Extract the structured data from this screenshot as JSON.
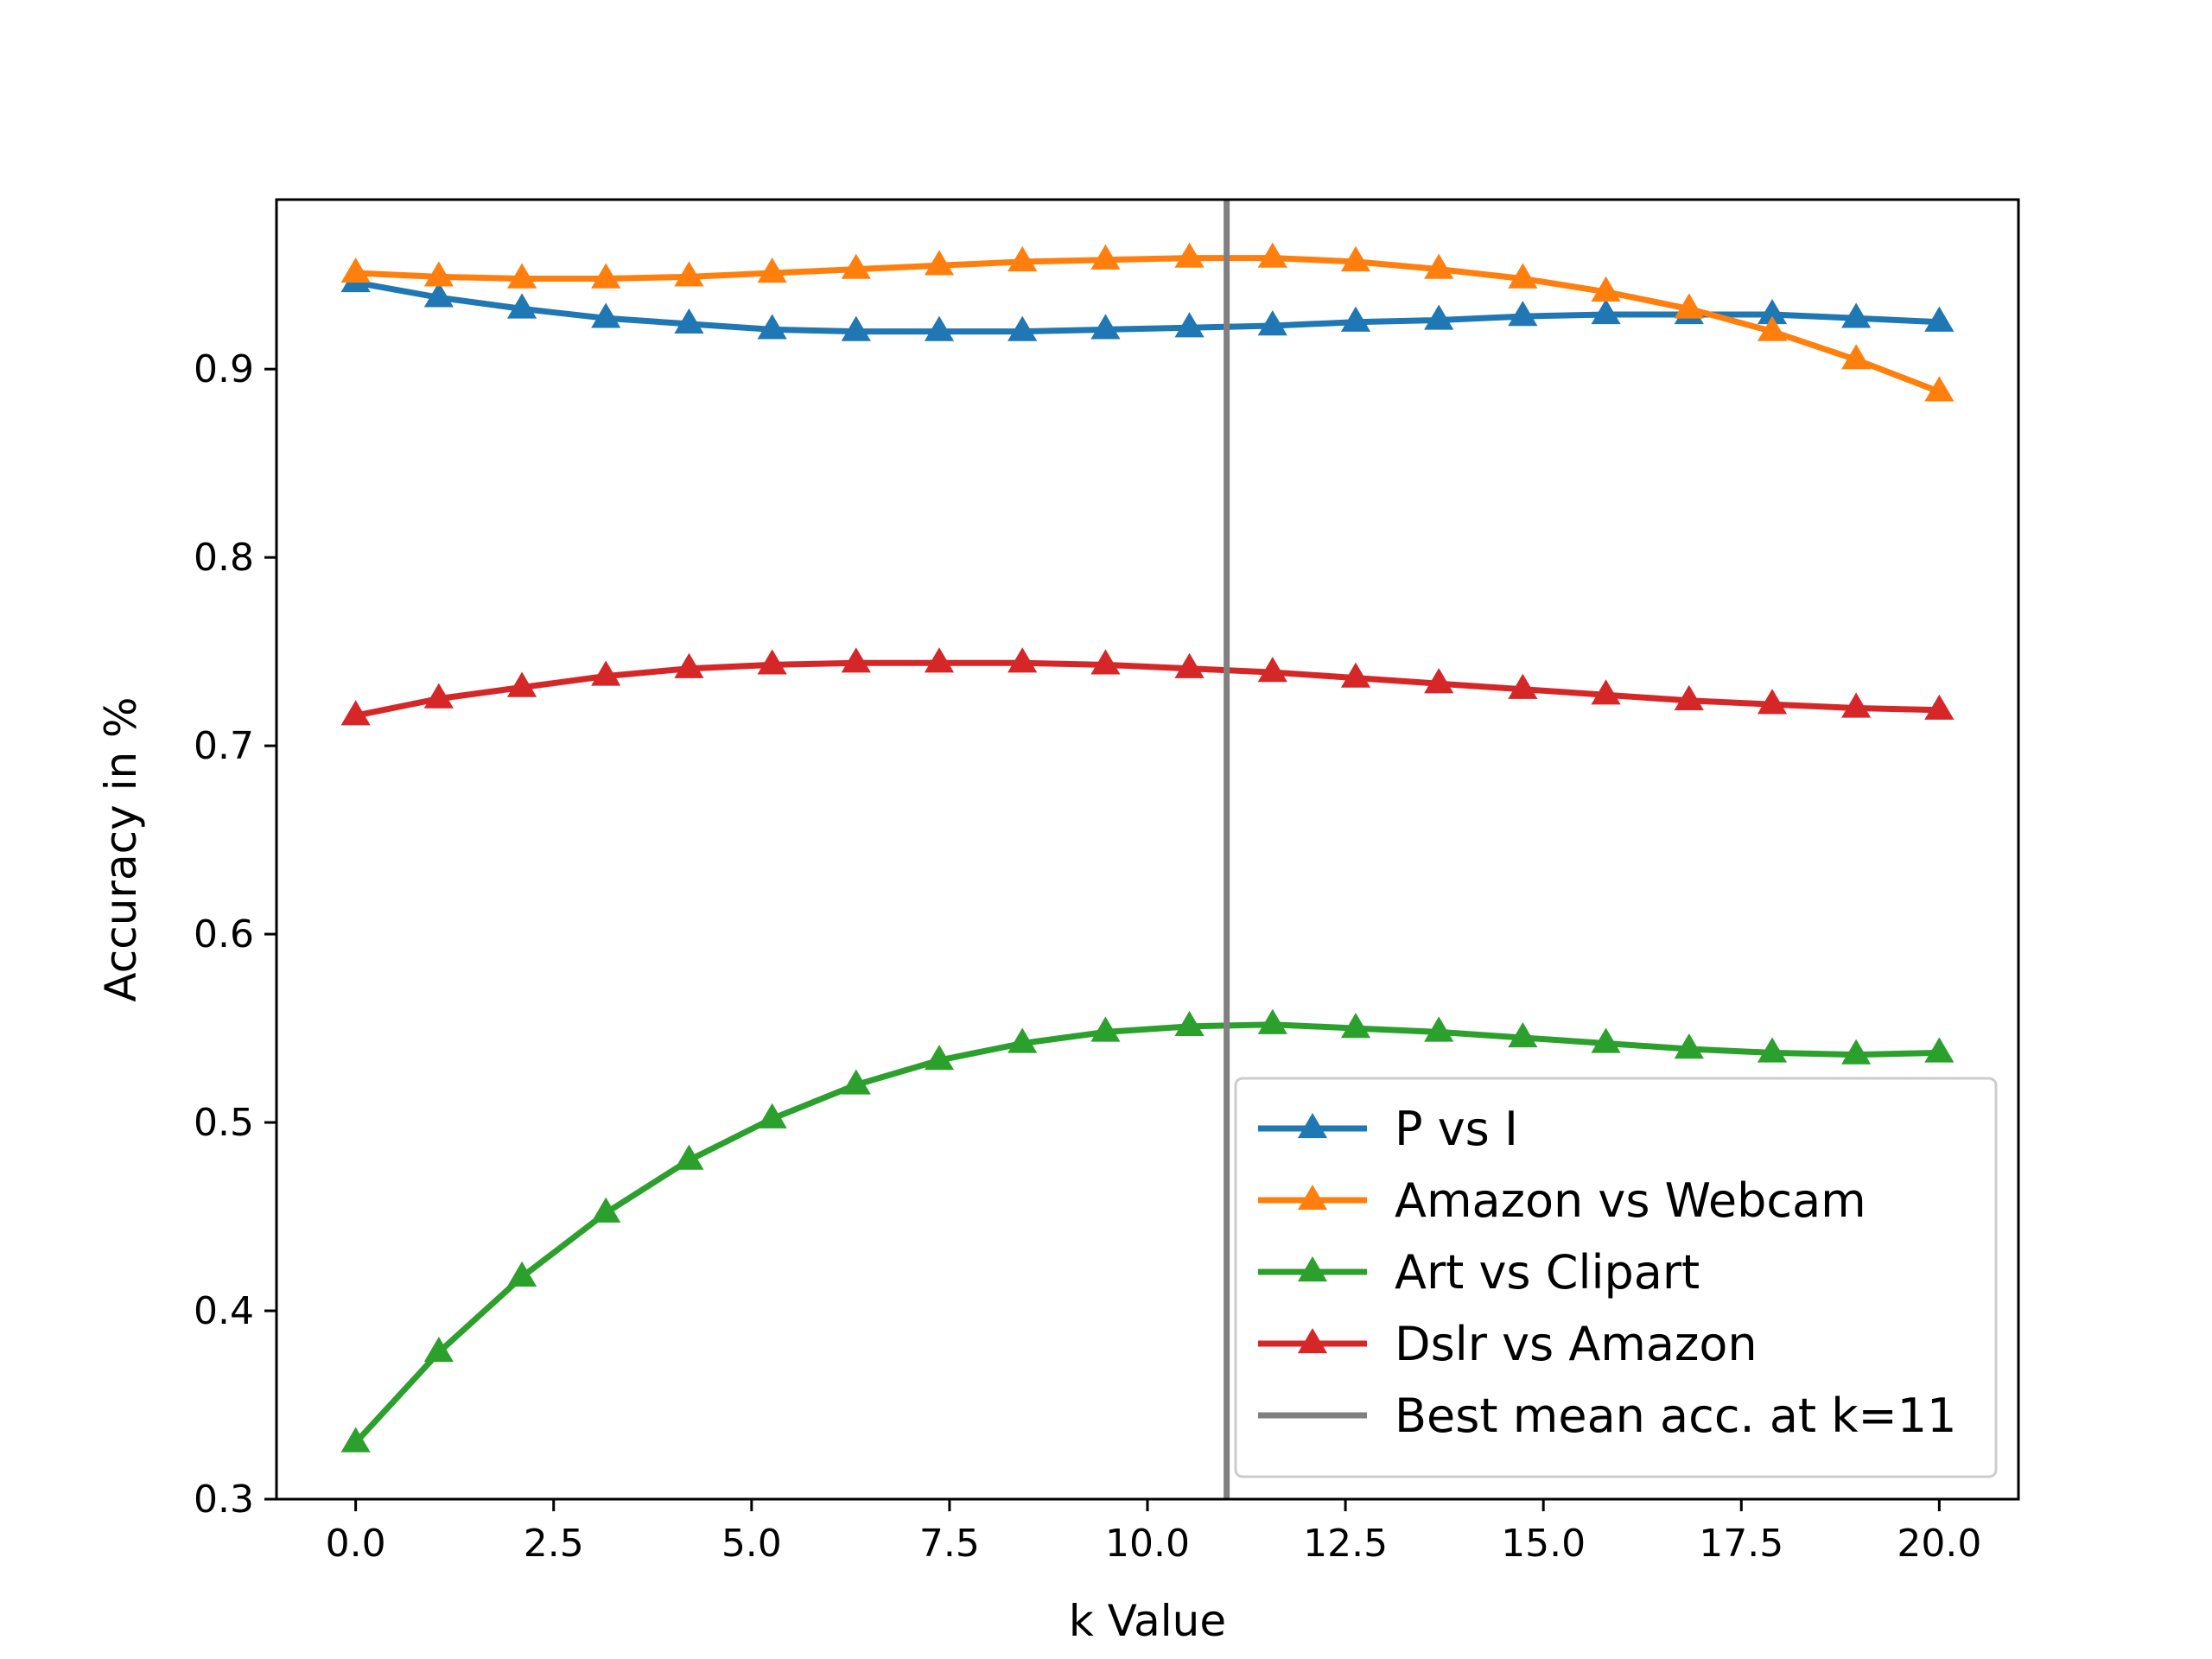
{
  "chart_data": {
    "type": "line",
    "title": "",
    "xlabel": "k Value",
    "ylabel": "Accuracy in %",
    "xlim": [
      -1,
      21
    ],
    "ylim": [
      0.3,
      0.99
    ],
    "xticks": [
      "0.0",
      "2.5",
      "5.0",
      "7.5",
      "10.0",
      "12.5",
      "15.0",
      "17.5",
      "20.0"
    ],
    "yticks": [
      "0.3",
      "0.4",
      "0.5",
      "0.6",
      "0.7",
      "0.8",
      "0.9"
    ],
    "x": [
      0,
      1.05,
      2.1,
      3.16,
      4.21,
      5.26,
      6.32,
      7.37,
      8.42,
      9.47,
      10.53,
      11.58,
      12.63,
      13.68,
      14.74,
      15.79,
      16.84,
      17.89,
      18.95,
      20.0
    ],
    "series": [
      {
        "name": "P vs I",
        "color": "#1f77b4",
        "values": [
          0.946,
          0.938,
          0.932,
          0.927,
          0.924,
          0.921,
          0.92,
          0.92,
          0.92,
          0.921,
          0.922,
          0.923,
          0.925,
          0.926,
          0.928,
          0.929,
          0.929,
          0.929,
          0.927,
          0.925
        ]
      },
      {
        "name": "Amazon vs Webcam",
        "color": "#ff7f0e",
        "values": [
          0.951,
          0.949,
          0.948,
          0.948,
          0.949,
          0.951,
          0.953,
          0.955,
          0.957,
          0.958,
          0.959,
          0.959,
          0.957,
          0.953,
          0.948,
          0.941,
          0.932,
          0.92,
          0.905,
          0.888
        ]
      },
      {
        "name": "Art vs Clipart",
        "color": "#2ca02c",
        "values": [
          0.33,
          0.378,
          0.418,
          0.452,
          0.48,
          0.502,
          0.52,
          0.533,
          0.542,
          0.548,
          0.551,
          0.552,
          0.55,
          0.548,
          0.545,
          0.542,
          0.539,
          0.537,
          0.536,
          0.537
        ]
      },
      {
        "name": "Dslr vs Amazon",
        "color": "#d62728",
        "values": [
          0.716,
          0.725,
          0.731,
          0.737,
          0.741,
          0.743,
          0.744,
          0.744,
          0.744,
          0.743,
          0.741,
          0.739,
          0.736,
          0.733,
          0.73,
          0.727,
          0.724,
          0.722,
          0.72,
          0.719
        ]
      }
    ],
    "vline": {
      "name": "Best mean acc. at k=11",
      "x": 11,
      "color": "#808080"
    },
    "marker": "triangle-up",
    "legend_position": "lower-right",
    "grid": false
  }
}
